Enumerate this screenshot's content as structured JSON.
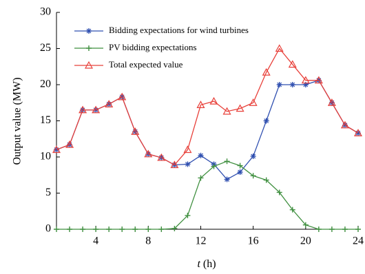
{
  "chart_data": {
    "type": "line",
    "xlabel_symbol": "t",
    "xlabel_unit": "(h)",
    "ylabel": "Output value  (MW)",
    "x": [
      1,
      2,
      3,
      4,
      5,
      6,
      7,
      8,
      9,
      10,
      11,
      12,
      13,
      14,
      15,
      16,
      17,
      18,
      19,
      20,
      21,
      22,
      23,
      24
    ],
    "xlim": [
      1,
      24
    ],
    "xticks": [
      4,
      8,
      12,
      16,
      20,
      24
    ],
    "ylim": [
      0,
      30
    ],
    "yticks": [
      0,
      5,
      10,
      15,
      20,
      25,
      30
    ],
    "legend": "upper left",
    "series": [
      {
        "name": "Bidding expectations for wind turbines",
        "color": "#2f4fb0",
        "marker": "star",
        "values": [
          11.0,
          11.7,
          16.5,
          16.5,
          17.3,
          18.3,
          13.5,
          10.4,
          9.9,
          8.9,
          9.0,
          10.2,
          9.0,
          6.9,
          7.9,
          10.1,
          15.0,
          20.0,
          20.0,
          20.0,
          20.6,
          17.5,
          14.4,
          13.3
        ]
      },
      {
        "name": "PV bidding expectations",
        "color": "#3f8f3f",
        "marker": "plus",
        "values": [
          0,
          0,
          0,
          0,
          0,
          0,
          0,
          0,
          0,
          0.1,
          1.9,
          7.1,
          8.7,
          9.4,
          8.8,
          7.4,
          6.8,
          5.1,
          2.7,
          0.6,
          0,
          0,
          0,
          0
        ]
      },
      {
        "name": "Total expected value",
        "color": "#e8403a",
        "marker": "triangle",
        "values": [
          11.0,
          11.7,
          16.5,
          16.5,
          17.3,
          18.3,
          13.5,
          10.4,
          9.9,
          8.9,
          11.0,
          17.2,
          17.7,
          16.3,
          16.7,
          17.5,
          21.7,
          25.0,
          22.8,
          20.6,
          20.6,
          17.5,
          14.4,
          13.3
        ]
      }
    ]
  }
}
